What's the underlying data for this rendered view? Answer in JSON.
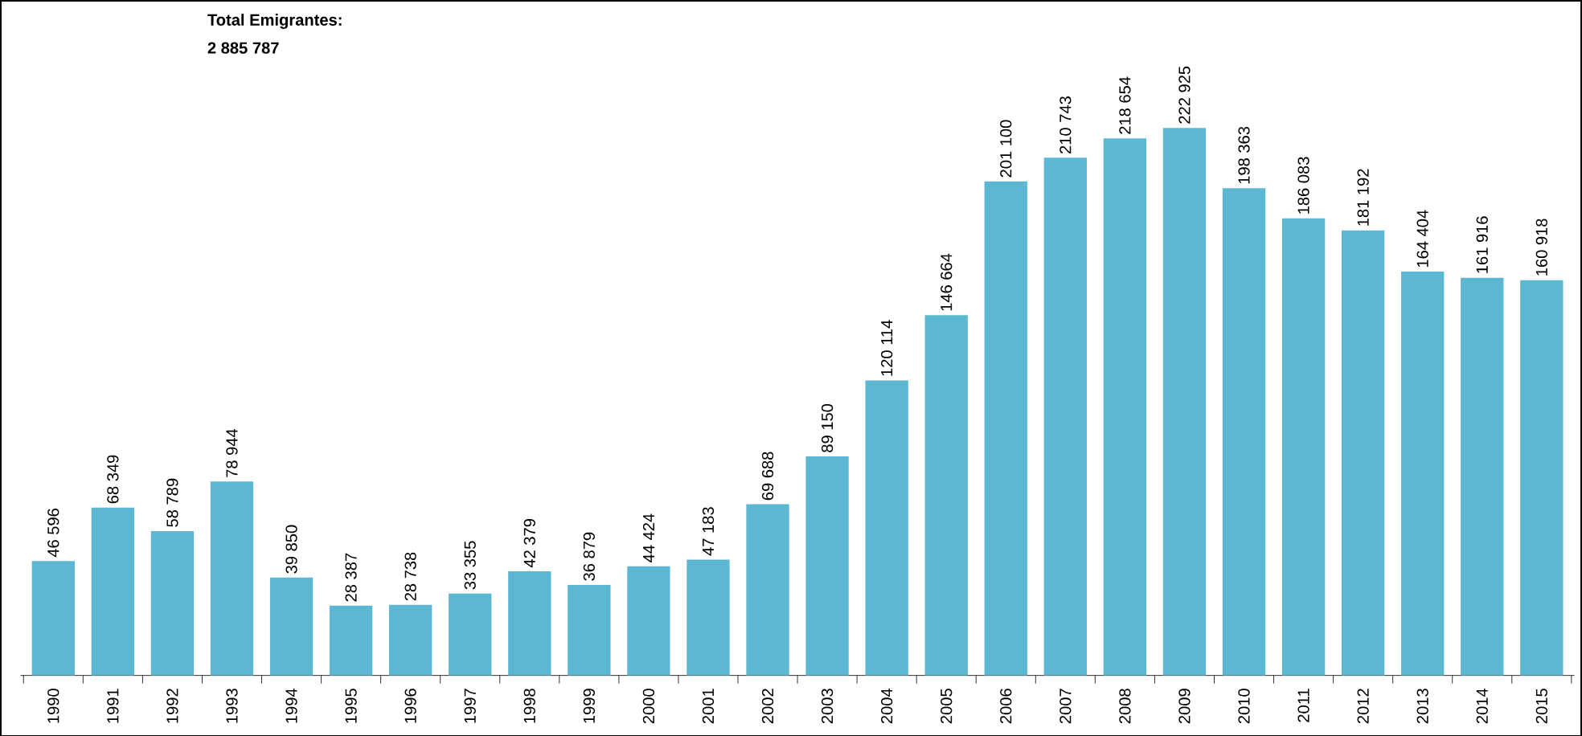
{
  "chart_data": {
    "type": "bar",
    "categories": [
      "1990",
      "1991",
      "1992",
      "1993",
      "1994",
      "1995",
      "1996",
      "1997",
      "1998",
      "1999",
      "2000",
      "2001",
      "2002",
      "2003",
      "2004",
      "2005",
      "2006",
      "2007",
      "2008",
      "2009",
      "2010",
      "2011",
      "2012",
      "2013",
      "2014",
      "2015"
    ],
    "values": [
      46596,
      68349,
      58789,
      78944,
      39850,
      28387,
      28738,
      33355,
      42379,
      36879,
      44424,
      47183,
      69688,
      89150,
      120114,
      146664,
      201100,
      210743,
      218654,
      222925,
      198363,
      186083,
      181192,
      164404,
      161916,
      160918
    ],
    "value_labels": [
      "46 596",
      "68 349",
      "58 789",
      "78 944",
      "39 850",
      "28 387",
      "28 738",
      "33 355",
      "42 379",
      "36 879",
      "44 424",
      "47 183",
      "69 688",
      "89 150",
      "120 114",
      "146 664",
      "201 100",
      "210 743",
      "218 654",
      "222 925",
      "198 363",
      "186 083",
      "181 192",
      "164 404",
      "161 916",
      "160 918"
    ],
    "color": "#5cb8d2",
    "annotations": [
      "Total Emigrantes:",
      "2 885 787"
    ]
  }
}
